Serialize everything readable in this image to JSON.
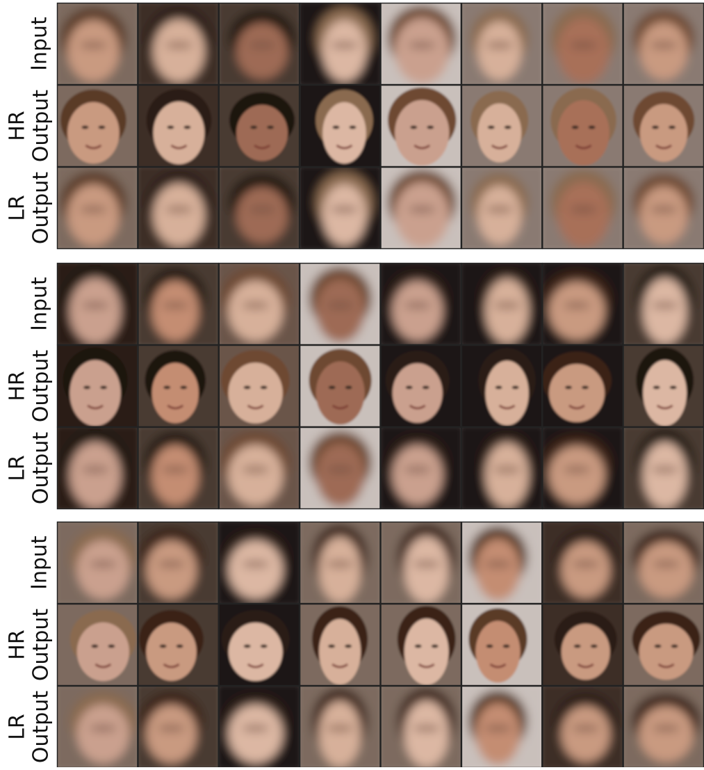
{
  "groups": [
    {
      "rows": [
        {
          "label": [
            "Input"
          ]
        },
        {
          "label": [
            "HR",
            "Output"
          ]
        },
        {
          "label": [
            "LR",
            "Output"
          ]
        }
      ]
    },
    {
      "rows": [
        {
          "label": [
            "Input"
          ]
        },
        {
          "label": [
            "HR",
            "Output"
          ]
        },
        {
          "label": [
            "LR",
            "Output"
          ]
        }
      ]
    },
    {
      "rows": [
        {
          "label": [
            "Input"
          ]
        },
        {
          "label": [
            "HR",
            "Output"
          ]
        },
        {
          "label": [
            "LR",
            "Output"
          ]
        }
      ]
    }
  ]
}
